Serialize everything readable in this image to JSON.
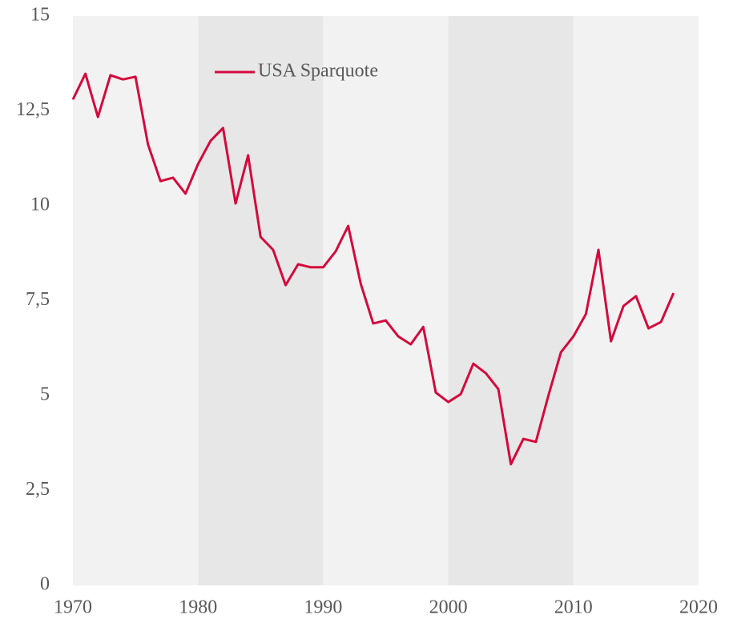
{
  "chart_data": {
    "type": "line",
    "x": [
      1970,
      1971,
      1972,
      1973,
      1974,
      1975,
      1976,
      1977,
      1978,
      1979,
      1980,
      1981,
      1982,
      1983,
      1984,
      1985,
      1986,
      1987,
      1988,
      1989,
      1990,
      1991,
      1992,
      1993,
      1994,
      1995,
      1996,
      1997,
      1998,
      1999,
      2000,
      2001,
      2002,
      2003,
      2004,
      2005,
      2006,
      2007,
      2008,
      2009,
      2010,
      2011,
      2012,
      2013,
      2014,
      2015,
      2016,
      2017,
      2018
    ],
    "series": [
      {
        "name": "USA Sparquote",
        "color": "#d40a3c",
        "values": [
          12.8,
          13.48,
          12.34,
          13.44,
          13.33,
          13.4,
          11.62,
          10.65,
          10.74,
          10.32,
          11.1,
          11.71,
          12.05,
          10.06,
          11.33,
          9.18,
          8.84,
          7.91,
          8.46,
          8.38,
          8.38,
          8.8,
          9.47,
          7.95,
          6.9,
          6.98,
          6.56,
          6.35,
          6.81,
          5.08,
          4.83,
          5.04,
          5.84,
          5.59,
          5.17,
          3.19,
          3.86,
          3.78,
          5.0,
          6.14,
          6.56,
          7.15,
          8.84,
          6.43,
          7.36,
          7.62,
          6.77,
          6.94,
          7.7
        ]
      }
    ],
    "xlim": [
      1970,
      2020
    ],
    "xticks": [
      1970,
      1980,
      1990,
      2000,
      2010,
      2020
    ],
    "ylim": [
      0,
      15
    ],
    "yticks": [
      0,
      {
        "value": 2.5,
        "label": "2,5"
      },
      5,
      {
        "value": 7.5,
        "label": "7,5"
      },
      10,
      {
        "value": 12.5,
        "label": "12,5"
      },
      15
    ],
    "legend": "top"
  }
}
